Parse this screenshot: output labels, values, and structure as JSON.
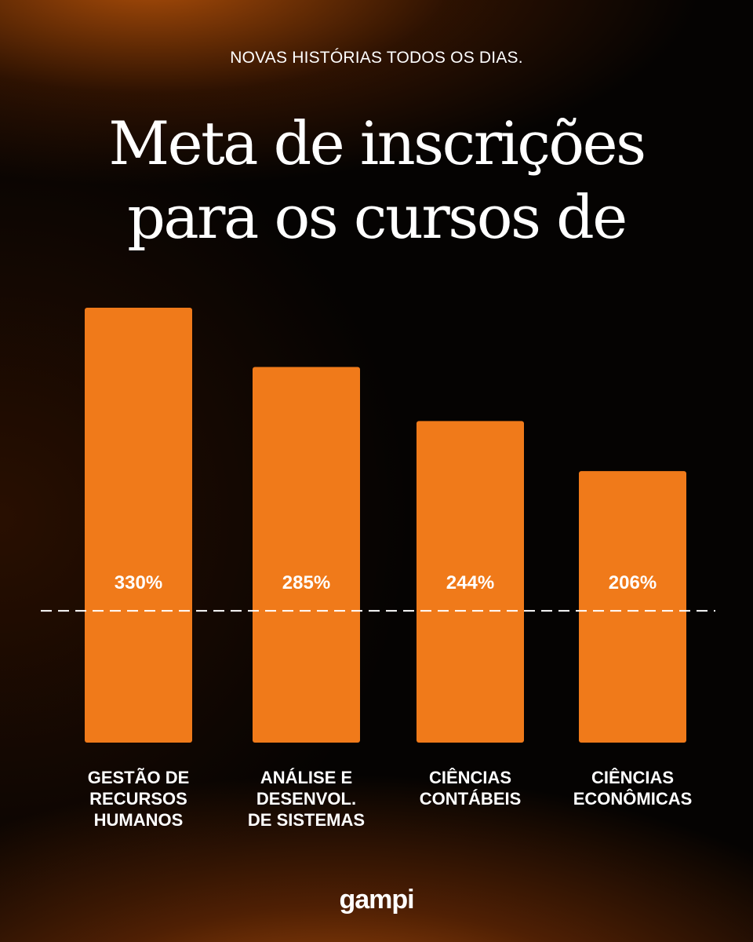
{
  "header": {
    "tagline": "NOVAS HISTÓRIAS TODOS OS DIAS.",
    "title_line1": "Meta de inscrições",
    "title_line2": "para os cursos de"
  },
  "brand": {
    "logo_text": "gampi"
  },
  "colors": {
    "bar": "#F07A1A",
    "text": "#FFFFFF",
    "reference_line": "#FFFFFF"
  },
  "chart_data": {
    "type": "bar",
    "categories": [
      [
        "GESTÃO DE",
        "RECURSOS",
        "HUMANOS"
      ],
      [
        "ANÁLISE E",
        "DESENVOL.",
        "DE SISTEMAS"
      ],
      [
        "CIÊNCIAS",
        "CONTÁBEIS"
      ],
      [
        "CIÊNCIAS",
        "ECONÔMICAS"
      ]
    ],
    "values": [
      330,
      285,
      244,
      206
    ],
    "data_labels": [
      "330%",
      "285%",
      "244%",
      "206%"
    ],
    "reference_line": {
      "value": 100,
      "style": "dashed"
    },
    "ylim": [
      0,
      330
    ],
    "grid": false,
    "legend": "none"
  }
}
